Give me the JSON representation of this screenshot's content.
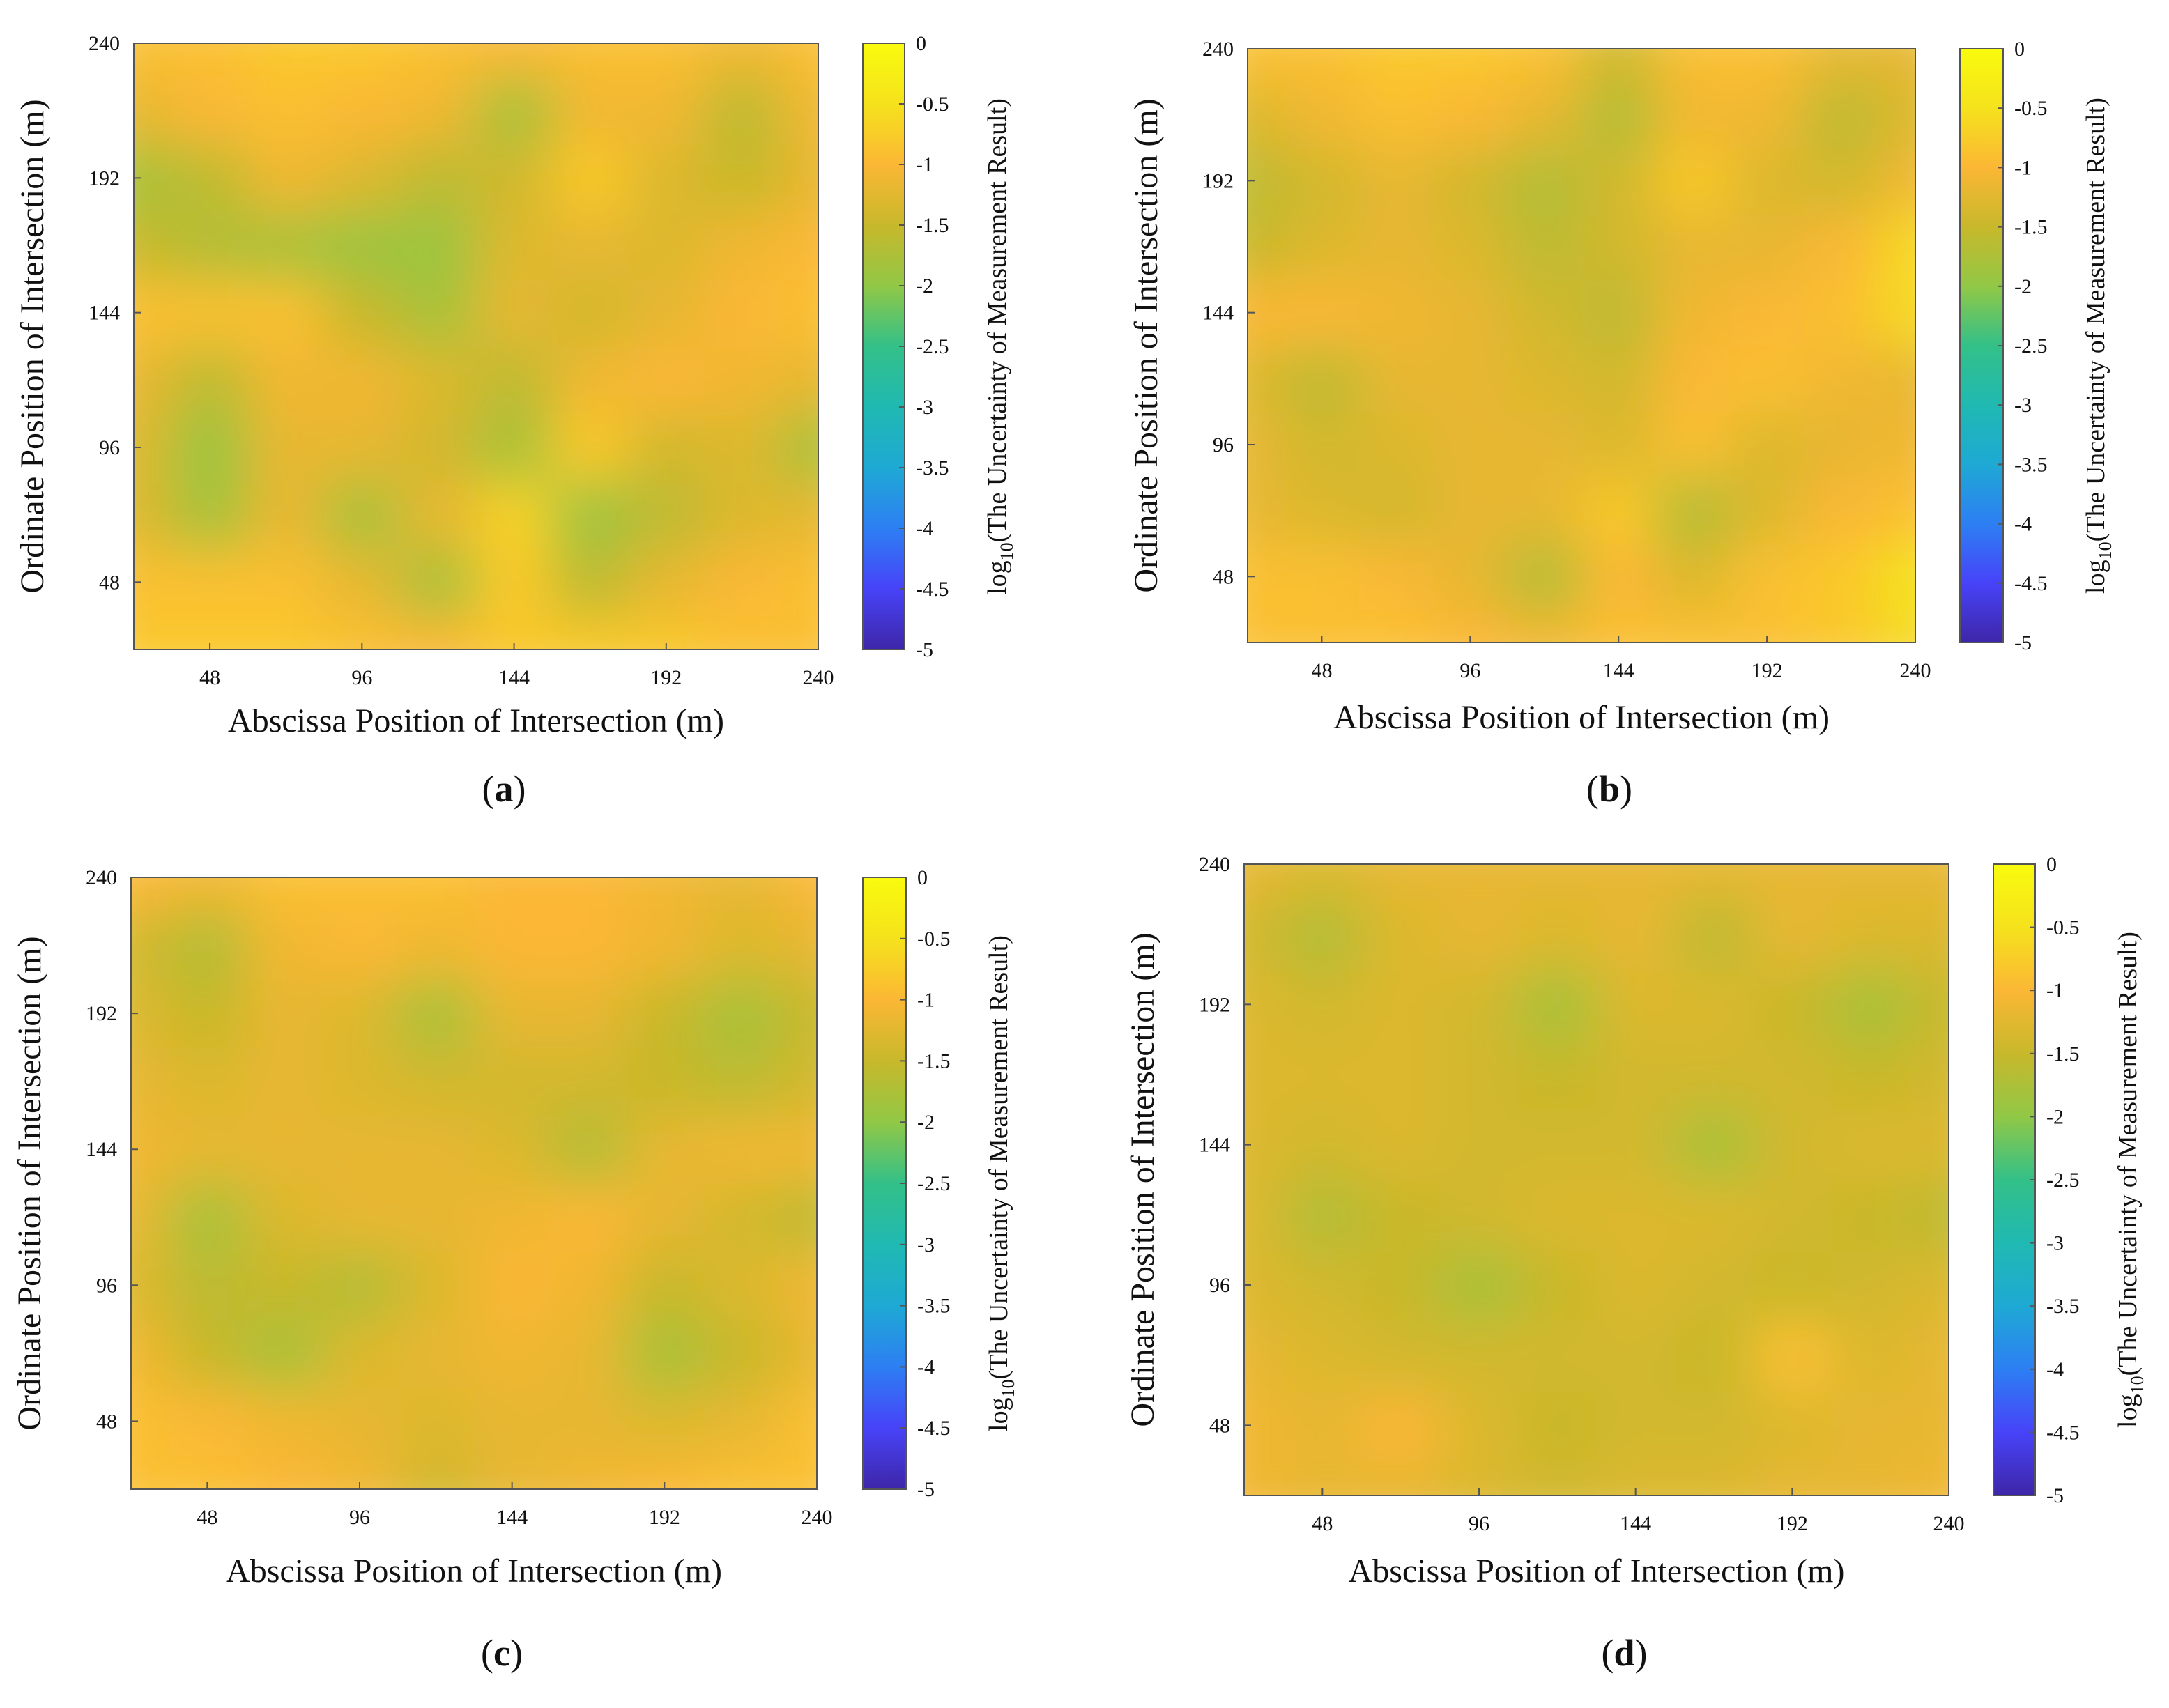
{
  "chart_data": [
    {
      "panel": "a",
      "type": "heatmap",
      "label": "(a)",
      "xlabel": "Abscissa Position of Intersection (m)",
      "ylabel": "Ordinate Position of Intersection  (m)",
      "colorbar_label": "log10(The Uncertainty of Measurement Result)",
      "xlim": [
        24,
        240
      ],
      "ylim": [
        24,
        240
      ],
      "xticks": [
        48,
        96,
        144,
        192,
        240
      ],
      "yticks": [
        48,
        96,
        144,
        192,
        240
      ],
      "clim": [
        -5,
        0
      ],
      "cticks": [
        "0",
        "-0.5",
        "-1",
        "-1.5",
        "-2",
        "-2.5",
        "-3",
        "-3.5",
        "-4",
        "-4.5",
        "-5"
      ],
      "x": [
        24,
        48,
        72,
        96,
        120,
        144,
        168,
        192,
        216,
        240
      ],
      "y": [
        24,
        48,
        72,
        96,
        120,
        144,
        168,
        192,
        216,
        240
      ],
      "z": [
        [
          -0.8,
          -0.8,
          -0.8,
          -0.9,
          -1.0,
          -0.8,
          -0.8,
          -0.8,
          -0.9,
          -0.9
        ],
        [
          -0.9,
          -0.9,
          -0.9,
          -1.2,
          -1.8,
          -0.8,
          -1.6,
          -1.2,
          -1.0,
          -0.9
        ],
        [
          -1.3,
          -1.8,
          -1.2,
          -1.8,
          -1.2,
          -0.7,
          -1.9,
          -1.6,
          -1.3,
          -1.2
        ],
        [
          -1.3,
          -1.9,
          -1.2,
          -1.2,
          -1.4,
          -1.8,
          -0.8,
          -1.4,
          -1.3,
          -1.8
        ],
        [
          -1.2,
          -1.6,
          -1.1,
          -1.1,
          -1.3,
          -1.6,
          -1.1,
          -1.0,
          -1.1,
          -1.2
        ],
        [
          -0.9,
          -0.9,
          -0.9,
          -1.5,
          -1.8,
          -1.2,
          -1.4,
          -1.2,
          -1.0,
          -0.9
        ],
        [
          -1.5,
          -1.7,
          -1.8,
          -1.9,
          -1.9,
          -1.3,
          -1.2,
          -1.3,
          -1.1,
          -1.0
        ],
        [
          -1.8,
          -1.6,
          -1.1,
          -1.3,
          -1.6,
          -1.4,
          -0.8,
          -1.3,
          -1.5,
          -1.2
        ],
        [
          -1.2,
          -1.0,
          -0.9,
          -1.0,
          -1.1,
          -1.8,
          -1.1,
          -1.1,
          -1.6,
          -1.1
        ],
        [
          -0.9,
          -0.9,
          -0.8,
          -0.8,
          -0.9,
          -1.0,
          -0.9,
          -0.9,
          -1.1,
          -0.9
        ]
      ]
    },
    {
      "panel": "b",
      "type": "heatmap",
      "label": "(b)",
      "xlabel": "Abscissa Position of Intersection (m)",
      "ylabel": "Ordinate Position of Intersection  (m)",
      "colorbar_label": "log10(The Uncertainty of Measurement Result)",
      "xlim": [
        24,
        240
      ],
      "ylim": [
        24,
        240
      ],
      "xticks": [
        48,
        96,
        144,
        192,
        240
      ],
      "yticks": [
        48,
        96,
        144,
        192,
        240
      ],
      "clim": [
        -5,
        0
      ],
      "cticks": [
        "0",
        "-0.5",
        "-1",
        "-1.5",
        "-2",
        "-2.5",
        "-3",
        "-3.5",
        "-4",
        "-4.5",
        "-5"
      ],
      "x": [
        24,
        48,
        72,
        96,
        120,
        144,
        168,
        192,
        216,
        240
      ],
      "y": [
        24,
        48,
        72,
        96,
        120,
        144,
        168,
        192,
        216,
        240
      ],
      "z": [
        [
          -0.9,
          -0.9,
          -0.9,
          -1.0,
          -1.1,
          -0.9,
          -0.9,
          -0.9,
          -0.8,
          -0.6
        ],
        [
          -0.9,
          -0.9,
          -1.0,
          -1.2,
          -1.7,
          -1.0,
          -1.3,
          -0.9,
          -0.8,
          -0.5
        ],
        [
          -1.2,
          -1.3,
          -1.4,
          -1.2,
          -1.2,
          -0.8,
          -1.7,
          -1.3,
          -1.0,
          -0.9
        ],
        [
          -1.2,
          -1.4,
          -1.3,
          -1.2,
          -1.2,
          -1.3,
          -0.9,
          -1.3,
          -1.2,
          -1.1
        ],
        [
          -1.3,
          -1.6,
          -1.2,
          -1.2,
          -1.3,
          -1.4,
          -1.0,
          -0.9,
          -1.1,
          -1.2
        ],
        [
          -1.0,
          -1.0,
          -1.1,
          -1.2,
          -1.4,
          -1.6,
          -1.1,
          -1.0,
          -0.9,
          -0.6
        ],
        [
          -1.5,
          -1.3,
          -1.2,
          -1.3,
          -1.6,
          -1.4,
          -1.2,
          -1.2,
          -1.0,
          -0.6
        ],
        [
          -1.6,
          -1.4,
          -1.2,
          -1.4,
          -1.7,
          -1.4,
          -0.8,
          -1.3,
          -1.4,
          -1.1
        ],
        [
          -1.3,
          -1.1,
          -0.9,
          -1.0,
          -1.2,
          -1.7,
          -1.1,
          -1.1,
          -1.6,
          -1.3
        ],
        [
          -0.9,
          -0.9,
          -0.8,
          -0.8,
          -0.9,
          -1.4,
          -0.9,
          -0.9,
          -1.2,
          -1.2
        ]
      ]
    },
    {
      "panel": "c",
      "type": "heatmap",
      "label": "(c)",
      "xlabel": "Abscissa Position of Intersection (m)",
      "ylabel": "Ordinate Position of Intersection  (m)",
      "colorbar_label": "log10(The Uncertainty of Measurement Result)",
      "xlim": [
        24,
        240
      ],
      "ylim": [
        24,
        240
      ],
      "xticks": [
        48,
        96,
        144,
        192,
        240
      ],
      "yticks": [
        48,
        96,
        144,
        192,
        240
      ],
      "clim": [
        -5,
        0
      ],
      "cticks": [
        "0",
        "-0.5",
        "-1",
        "-1.5",
        "-2",
        "-2.5",
        "-3",
        "-3.5",
        "-4",
        "-4.5",
        "-5"
      ],
      "x": [
        24,
        48,
        72,
        96,
        120,
        144,
        168,
        192,
        216,
        240
      ],
      "y": [
        24,
        48,
        72,
        96,
        120,
        144,
        168,
        192,
        216,
        240
      ],
      "z": [
        [
          -0.9,
          -0.9,
          -1.0,
          -1.1,
          -1.4,
          -1.2,
          -1.1,
          -1.0,
          -0.9,
          -0.9
        ],
        [
          -0.9,
          -1.0,
          -1.1,
          -1.2,
          -1.3,
          -1.2,
          -1.2,
          -1.3,
          -1.2,
          -0.9
        ],
        [
          -1.1,
          -1.5,
          -1.8,
          -1.3,
          -1.2,
          -1.1,
          -1.2,
          -1.8,
          -1.5,
          -1.2
        ],
        [
          -1.3,
          -1.6,
          -1.5,
          -1.7,
          -1.3,
          -1.0,
          -1.1,
          -1.5,
          -1.3,
          -1.1
        ],
        [
          -1.2,
          -1.8,
          -1.3,
          -1.2,
          -1.2,
          -1.1,
          -1.0,
          -1.2,
          -1.4,
          -1.6
        ],
        [
          -1.1,
          -1.2,
          -1.2,
          -1.2,
          -1.2,
          -1.3,
          -1.7,
          -1.2,
          -1.1,
          -1.1
        ],
        [
          -1.2,
          -1.3,
          -1.2,
          -1.3,
          -1.4,
          -1.4,
          -1.4,
          -1.5,
          -1.6,
          -1.4
        ],
        [
          -1.3,
          -1.5,
          -1.2,
          -1.3,
          -1.8,
          -1.2,
          -1.2,
          -1.5,
          -1.8,
          -1.5
        ],
        [
          -1.4,
          -1.7,
          -1.1,
          -1.0,
          -1.1,
          -1.0,
          -1.0,
          -1.1,
          -1.3,
          -1.2
        ],
        [
          -1.0,
          -1.1,
          -0.9,
          -0.9,
          -0.9,
          -1.0,
          -1.0,
          -1.1,
          -1.2,
          -1.0
        ]
      ]
    },
    {
      "panel": "d",
      "type": "heatmap",
      "label": "(d)",
      "xlabel": "Abscissa Position of Intersection (m)",
      "ylabel": "Ordinate Position of Intersection  (m)",
      "colorbar_label": "log10(The Uncertainty of Measurement Result)",
      "xlim": [
        24,
        240
      ],
      "ylim": [
        24,
        240
      ],
      "xticks": [
        48,
        96,
        144,
        192,
        240
      ],
      "yticks": [
        48,
        96,
        144,
        192,
        240
      ],
      "clim": [
        -5,
        0
      ],
      "cticks": [
        "0",
        "-0.5",
        "-1",
        "-1.5",
        "-2",
        "-2.5",
        "-3",
        "-3.5",
        "-4",
        "-4.5",
        "-5"
      ],
      "x": [
        24,
        48,
        72,
        96,
        120,
        144,
        168,
        192,
        216,
        240
      ],
      "y": [
        24,
        48,
        72,
        96,
        120,
        144,
        168,
        192,
        216,
        240
      ],
      "z": [
        [
          -1.1,
          -1.2,
          -1.2,
          -1.3,
          -1.4,
          -1.3,
          -1.3,
          -1.2,
          -1.2,
          -1.1
        ],
        [
          -1.1,
          -1.2,
          -1.0,
          -1.3,
          -1.5,
          -1.4,
          -1.4,
          -1.3,
          -1.2,
          -1.2
        ],
        [
          -1.2,
          -1.3,
          -1.4,
          -1.4,
          -1.4,
          -1.4,
          -1.5,
          -0.9,
          -1.3,
          -1.2
        ],
        [
          -1.3,
          -1.4,
          -1.5,
          -1.8,
          -1.5,
          -1.3,
          -1.4,
          -1.5,
          -1.4,
          -1.3
        ],
        [
          -1.3,
          -1.7,
          -1.5,
          -1.4,
          -1.3,
          -1.3,
          -1.3,
          -1.4,
          -1.5,
          -1.6
        ],
        [
          -1.3,
          -1.4,
          -1.3,
          -1.4,
          -1.4,
          -1.4,
          -1.8,
          -1.4,
          -1.3,
          -1.3
        ],
        [
          -1.3,
          -1.3,
          -1.3,
          -1.4,
          -1.5,
          -1.4,
          -1.4,
          -1.4,
          -1.5,
          -1.4
        ],
        [
          -1.3,
          -1.4,
          -1.3,
          -1.4,
          -1.8,
          -1.3,
          -1.3,
          -1.5,
          -1.8,
          -1.5
        ],
        [
          -1.4,
          -1.7,
          -1.3,
          -1.2,
          -1.3,
          -1.2,
          -1.6,
          -1.2,
          -1.3,
          -1.3
        ],
        [
          -1.2,
          -1.3,
          -1.2,
          -1.2,
          -1.2,
          -1.2,
          -1.2,
          -1.2,
          -1.2,
          -1.2
        ]
      ]
    }
  ],
  "colormap": [
    "#3e26a8",
    "#4743f8",
    "#2d7ff3",
    "#1ea9d4",
    "#20b9b2",
    "#33c088",
    "#91c846",
    "#c8b82b",
    "#fbb735",
    "#f5e21c",
    "#f9fb0e"
  ]
}
